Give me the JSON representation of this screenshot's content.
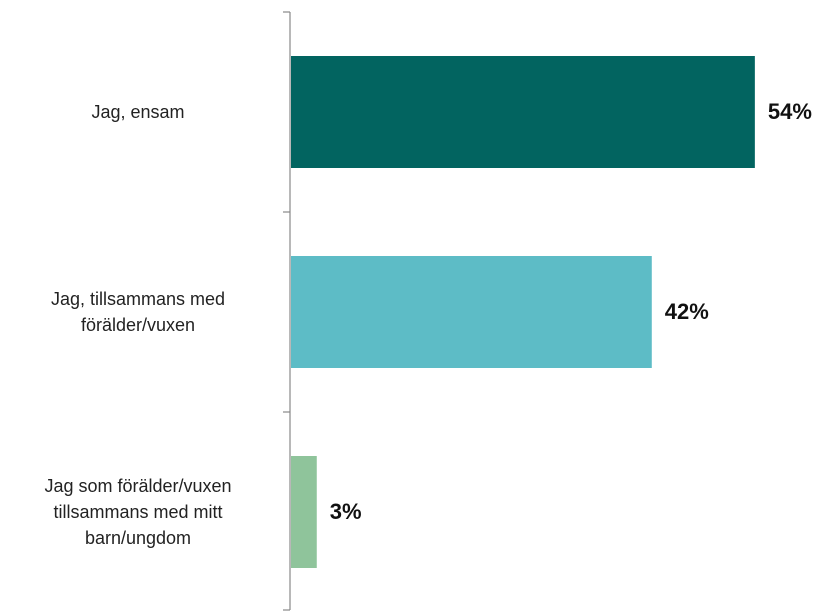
{
  "chart_data": {
    "type": "bar",
    "orientation": "horizontal",
    "categories": [
      "Jag, ensam",
      "Jag, tillsammans med\nförälder/vuxen",
      "Jag som förälder/vuxen\ntillsammans med mitt\nbarn/ungdom"
    ],
    "values": [
      54,
      42,
      3
    ],
    "value_labels": [
      "54%",
      "42%",
      "3%"
    ],
    "colors": [
      "#026460",
      "#5dbcc6",
      "#8fc49b"
    ]
  }
}
